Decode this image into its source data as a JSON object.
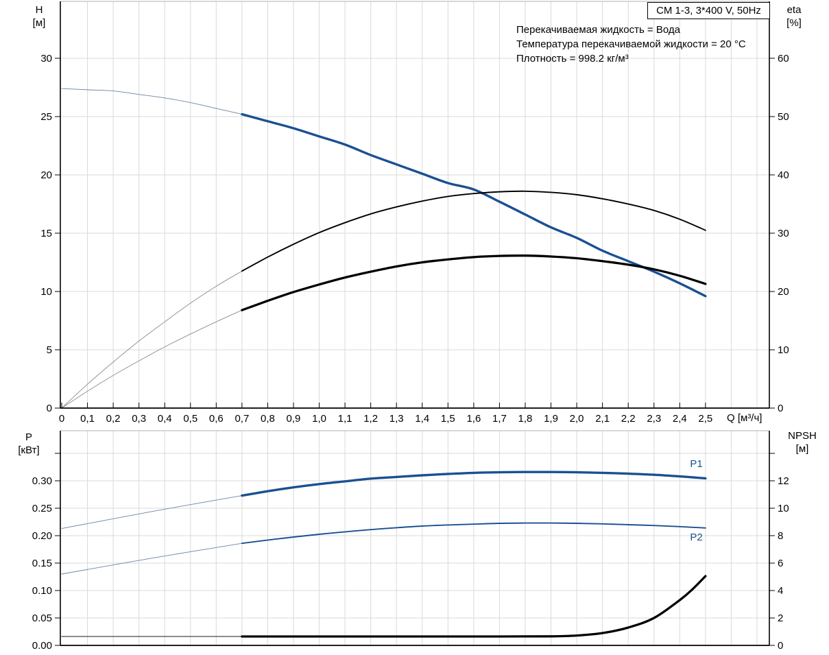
{
  "header": {
    "title_box": "CM 1-3, 3*400 V, 50Hz",
    "info_lines": [
      "Перекачиваемая жидкость = Вода",
      "Температура перекачиваемой жидкости = 20 °C",
      "Плотность = 998.2 кг/м³"
    ]
  },
  "colors": {
    "curve_blue": "#1a5091",
    "curve_black": "#000000",
    "hair_gray": "#8c8c8c",
    "hair_blue": "#6b83a4",
    "grid": "#d9d9d9",
    "frame_top": "#b0b0b0",
    "axis": "#000000"
  },
  "chart_data": [
    {
      "type": "line",
      "position": "top",
      "x_axis": {
        "label": "Q [м³/ч]",
        "max": 2.748,
        "grid_step": 0.1,
        "tick_values": [
          0,
          0.1,
          0.2,
          0.3,
          0.4,
          0.5,
          0.6,
          0.7,
          0.8,
          0.9,
          1.0,
          1.1,
          1.2,
          1.3,
          1.4,
          1.5,
          1.6,
          1.7,
          1.8,
          1.9,
          2.0,
          2.1,
          2.2,
          2.3,
          2.4,
          2.5
        ],
        "tick_labels": [
          "0",
          "0,1",
          "0,2",
          "0,3",
          "0,4",
          "0,5",
          "0,6",
          "0,7",
          "0,8",
          "0,9",
          "1,0",
          "1,1",
          "1,2",
          "1,3",
          "1,4",
          "1,5",
          "1,6",
          "1,7",
          "1,8",
          "1,9",
          "2,0",
          "2,1",
          "2,2",
          "2,3",
          "2,4",
          "2,5"
        ]
      },
      "left_axis": {
        "label": "H",
        "unit": "[м]",
        "max": 34.88,
        "tick_values": [
          0,
          5,
          10,
          15,
          20,
          25,
          30
        ],
        "tick_labels": [
          "0",
          "5",
          "10",
          "15",
          "20",
          "25",
          "30"
        ],
        "extra_tick_values": []
      },
      "right_axis": {
        "label": "eta",
        "unit": "[%]",
        "max": 69.76,
        "tick_values": [
          0,
          10,
          20,
          30,
          40,
          50,
          60
        ],
        "tick_labels": [
          "0",
          "10",
          "20",
          "30",
          "40",
          "50",
          "60"
        ],
        "extra_tick_values": []
      },
      "series": [
        {
          "name": "H-curve-extension",
          "axis": "left",
          "style": "hair_blue",
          "points": [
            [
              0,
              27.4
            ],
            [
              0.1,
              27.3
            ],
            [
              0.2,
              27.2
            ],
            [
              0.3,
              26.9
            ],
            [
              0.4,
              26.6
            ],
            [
              0.5,
              26.2
            ],
            [
              0.6,
              25.7
            ],
            [
              0.7,
              25.2
            ]
          ]
        },
        {
          "name": "H-curve",
          "axis": "left",
          "style": "thick_blue",
          "points": [
            [
              0.7,
              25.2
            ],
            [
              0.8,
              24.6
            ],
            [
              0.9,
              24.0
            ],
            [
              1.0,
              23.3
            ],
            [
              1.1,
              22.6
            ],
            [
              1.2,
              21.7
            ],
            [
              1.3,
              20.9
            ],
            [
              1.4,
              20.1
            ],
            [
              1.5,
              19.3
            ],
            [
              1.6,
              18.75
            ],
            [
              1.7,
              17.7
            ],
            [
              1.8,
              16.6
            ],
            [
              1.9,
              15.5
            ],
            [
              2.0,
              14.6
            ],
            [
              2.1,
              13.5
            ],
            [
              2.2,
              12.6
            ],
            [
              2.3,
              11.7
            ],
            [
              2.4,
              10.7
            ],
            [
              2.5,
              9.6
            ]
          ]
        },
        {
          "name": "eta-upper-extension",
          "axis": "right",
          "style": "hair_gray",
          "points": [
            [
              0,
              0
            ],
            [
              0.1,
              4.1
            ],
            [
              0.2,
              7.9
            ],
            [
              0.3,
              11.5
            ],
            [
              0.4,
              14.8
            ],
            [
              0.5,
              18.0
            ],
            [
              0.6,
              20.9
            ],
            [
              0.7,
              23.5
            ]
          ]
        },
        {
          "name": "eta-upper-curve",
          "axis": "right",
          "style": "med_black",
          "points": [
            [
              0.7,
              23.5
            ],
            [
              0.8,
              25.9
            ],
            [
              0.9,
              28.1
            ],
            [
              1.0,
              30.1
            ],
            [
              1.1,
              31.8
            ],
            [
              1.2,
              33.3
            ],
            [
              1.3,
              34.5
            ],
            [
              1.4,
              35.5
            ],
            [
              1.5,
              36.3
            ],
            [
              1.6,
              36.8
            ],
            [
              1.7,
              37.1
            ],
            [
              1.8,
              37.2
            ],
            [
              1.9,
              37.0
            ],
            [
              2.0,
              36.6
            ],
            [
              2.1,
              35.9
            ],
            [
              2.2,
              35.0
            ],
            [
              2.3,
              33.9
            ],
            [
              2.4,
              32.4
            ],
            [
              2.5,
              30.5
            ]
          ]
        },
        {
          "name": "eta-lower-extension",
          "axis": "right",
          "style": "hair_gray",
          "points": [
            [
              0,
              0
            ],
            [
              0.1,
              2.9
            ],
            [
              0.2,
              5.6
            ],
            [
              0.3,
              8.1
            ],
            [
              0.4,
              10.5
            ],
            [
              0.5,
              12.7
            ],
            [
              0.6,
              14.8
            ],
            [
              0.7,
              16.8
            ]
          ]
        },
        {
          "name": "eta-lower-curve",
          "axis": "right",
          "style": "thick_black",
          "points": [
            [
              0.7,
              16.8
            ],
            [
              0.8,
              18.4
            ],
            [
              0.9,
              19.9
            ],
            [
              1.0,
              21.2
            ],
            [
              1.1,
              22.4
            ],
            [
              1.2,
              23.4
            ],
            [
              1.3,
              24.3
            ],
            [
              1.4,
              25.0
            ],
            [
              1.5,
              25.5
            ],
            [
              1.6,
              25.9
            ],
            [
              1.7,
              26.1
            ],
            [
              1.8,
              26.15
            ],
            [
              1.9,
              26.0
            ],
            [
              2.0,
              25.7
            ],
            [
              2.1,
              25.2
            ],
            [
              2.2,
              24.6
            ],
            [
              2.3,
              23.8
            ],
            [
              2.4,
              22.7
            ],
            [
              2.5,
              21.3
            ]
          ]
        }
      ],
      "annotations": []
    },
    {
      "type": "line",
      "position": "bottom",
      "x_axis": {
        "label": "",
        "max": 2.748,
        "grid_step": 0.1,
        "tick_values": [],
        "tick_labels": []
      },
      "left_axis": {
        "label": "P",
        "unit": "[кВт]",
        "max": 0.39125,
        "tick_values": [
          0,
          0.05,
          0.1,
          0.15,
          0.2,
          0.25,
          0.3
        ],
        "tick_labels": [
          "0.00",
          "0.05",
          "0.10",
          "0.15",
          "0.20",
          "0.25",
          "0.30"
        ],
        "extra_tick_values": [
          0.35
        ]
      },
      "right_axis": {
        "label": "NPSH",
        "unit": "[м]",
        "max": 15.65,
        "tick_values": [
          0,
          2,
          4,
          6,
          8,
          10,
          12
        ],
        "tick_labels": [
          "0",
          "2",
          "4",
          "6",
          "8",
          "10",
          "12"
        ],
        "extra_tick_values": [
          14
        ]
      },
      "series": [
        {
          "name": "P1-extension",
          "axis": "left",
          "style": "hair_blue",
          "points": [
            [
              0,
              0.213
            ],
            [
              0.35,
              0.244
            ],
            [
              0.7,
              0.273
            ]
          ]
        },
        {
          "name": "P1-curve",
          "axis": "left",
          "style": "thick_blue",
          "points": [
            [
              0.7,
              0.273
            ],
            [
              0.8,
              0.281
            ],
            [
              0.9,
              0.288
            ],
            [
              1.0,
              0.294
            ],
            [
              1.1,
              0.299
            ],
            [
              1.2,
              0.304
            ],
            [
              1.3,
              0.307
            ],
            [
              1.4,
              0.31
            ],
            [
              1.5,
              0.3125
            ],
            [
              1.6,
              0.3145
            ],
            [
              1.7,
              0.3155
            ],
            [
              1.8,
              0.316
            ],
            [
              1.9,
              0.316
            ],
            [
              2.0,
              0.3155
            ],
            [
              2.1,
              0.3145
            ],
            [
              2.2,
              0.313
            ],
            [
              2.3,
              0.311
            ],
            [
              2.4,
              0.308
            ],
            [
              2.5,
              0.3045
            ]
          ]
        },
        {
          "name": "P2-extension",
          "axis": "left",
          "style": "hair_blue",
          "points": [
            [
              0,
              0.13
            ],
            [
              0.35,
              0.159
            ],
            [
              0.7,
              0.186
            ]
          ]
        },
        {
          "name": "P2-curve",
          "axis": "left",
          "style": "med_blue",
          "points": [
            [
              0.7,
              0.186
            ],
            [
              0.8,
              0.192
            ],
            [
              0.9,
              0.1975
            ],
            [
              1.0,
              0.2025
            ],
            [
              1.1,
              0.207
            ],
            [
              1.2,
              0.211
            ],
            [
              1.3,
              0.2145
            ],
            [
              1.4,
              0.2175
            ],
            [
              1.5,
              0.2195
            ],
            [
              1.6,
              0.221
            ],
            [
              1.7,
              0.2225
            ],
            [
              1.8,
              0.223
            ],
            [
              1.9,
              0.223
            ],
            [
              2.0,
              0.2225
            ],
            [
              2.1,
              0.2215
            ],
            [
              2.2,
              0.22
            ],
            [
              2.3,
              0.2185
            ],
            [
              2.4,
              0.2165
            ],
            [
              2.5,
              0.214
            ]
          ]
        },
        {
          "name": "NPSH-extension",
          "axis": "right",
          "style": "thin_black",
          "points": [
            [
              0,
              0.65
            ],
            [
              0.7,
              0.65
            ]
          ]
        },
        {
          "name": "NPSH-curve",
          "axis": "right",
          "style": "thick_black",
          "points": [
            [
              0.7,
              0.65
            ],
            [
              1.0,
              0.65
            ],
            [
              1.4,
              0.65
            ],
            [
              1.7,
              0.65
            ],
            [
              1.9,
              0.66
            ],
            [
              2.0,
              0.72
            ],
            [
              2.1,
              0.9
            ],
            [
              2.2,
              1.3
            ],
            [
              2.3,
              2.0
            ],
            [
              2.4,
              3.3
            ],
            [
              2.45,
              4.1
            ],
            [
              2.5,
              5.05
            ]
          ]
        }
      ],
      "annotations": [
        {
          "text": "P1",
          "x": 2.44,
          "y": 0.325,
          "axis": "left",
          "color_key": "curve_blue"
        },
        {
          "text": "P2",
          "x": 2.44,
          "y": 0.191,
          "axis": "left",
          "color_key": "curve_blue"
        }
      ]
    }
  ]
}
